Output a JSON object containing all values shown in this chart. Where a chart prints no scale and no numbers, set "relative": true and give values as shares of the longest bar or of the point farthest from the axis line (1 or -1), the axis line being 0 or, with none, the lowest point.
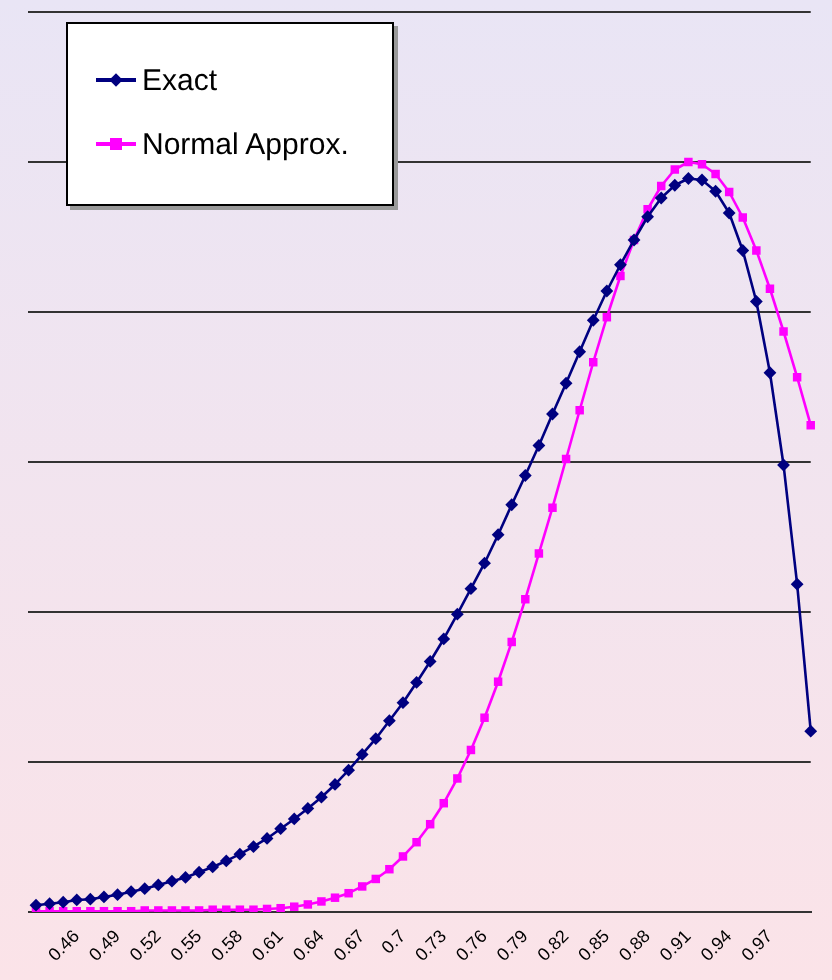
{
  "chart_data": {
    "type": "line",
    "relative": true,
    "grid": "y",
    "legend": "top left",
    "categories": [
      null,
      null,
      null,
      "0.46",
      null,
      null,
      "0.49",
      null,
      null,
      "0.52",
      null,
      null,
      "0.55",
      null,
      null,
      "0.58",
      null,
      null,
      "0.61",
      null,
      null,
      "0.64",
      null,
      null,
      "0.67",
      null,
      null,
      "0.7",
      null,
      null,
      "0.73",
      null,
      null,
      "0.76",
      null,
      null,
      "0.79",
      null,
      null,
      "0.82",
      null,
      null,
      "0.85",
      null,
      null,
      "0.88",
      null,
      null,
      "0.91",
      null,
      null,
      "0.94",
      null,
      null,
      "0.97",
      null,
      null,
      null
    ],
    "series": [
      {
        "name": "Exact",
        "color": "#000080",
        "marker": "diamond",
        "values": [
          0.009,
          0.011,
          0.013,
          0.016,
          0.017,
          0.02,
          0.023,
          0.027,
          0.031,
          0.036,
          0.041,
          0.046,
          0.053,
          0.06,
          0.068,
          0.077,
          0.087,
          0.098,
          0.111,
          0.124,
          0.138,
          0.153,
          0.17,
          0.189,
          0.21,
          0.231,
          0.255,
          0.279,
          0.306,
          0.334,
          0.364,
          0.397,
          0.431,
          0.465,
          0.503,
          0.543,
          0.582,
          0.622,
          0.664,
          0.705,
          0.747,
          0.789,
          0.828,
          0.863,
          0.896,
          0.927,
          0.952,
          0.969,
          0.978,
          0.976,
          0.961,
          0.932,
          0.882,
          0.814,
          0.719,
          0.596,
          0.437,
          0.241
        ]
      },
      {
        "name": "Normal Approx.",
        "color": "#ff00ff",
        "marker": "square",
        "values": [
          0.001,
          0.001,
          0.001,
          0.001,
          0.001,
          0.001,
          0.001,
          0.001,
          0.002,
          0.002,
          0.002,
          0.002,
          0.002,
          0.003,
          0.003,
          0.003,
          0.003,
          0.004,
          0.005,
          0.007,
          0.01,
          0.014,
          0.019,
          0.025,
          0.034,
          0.044,
          0.057,
          0.074,
          0.093,
          0.117,
          0.145,
          0.178,
          0.216,
          0.259,
          0.307,
          0.36,
          0.417,
          0.478,
          0.539,
          0.604,
          0.669,
          0.733,
          0.793,
          0.848,
          0.896,
          0.937,
          0.968,
          0.99,
          1,
          0.997,
          0.984,
          0.96,
          0.926,
          0.882,
          0.831,
          0.774,
          0.713,
          0.649
        ]
      }
    ]
  }
}
